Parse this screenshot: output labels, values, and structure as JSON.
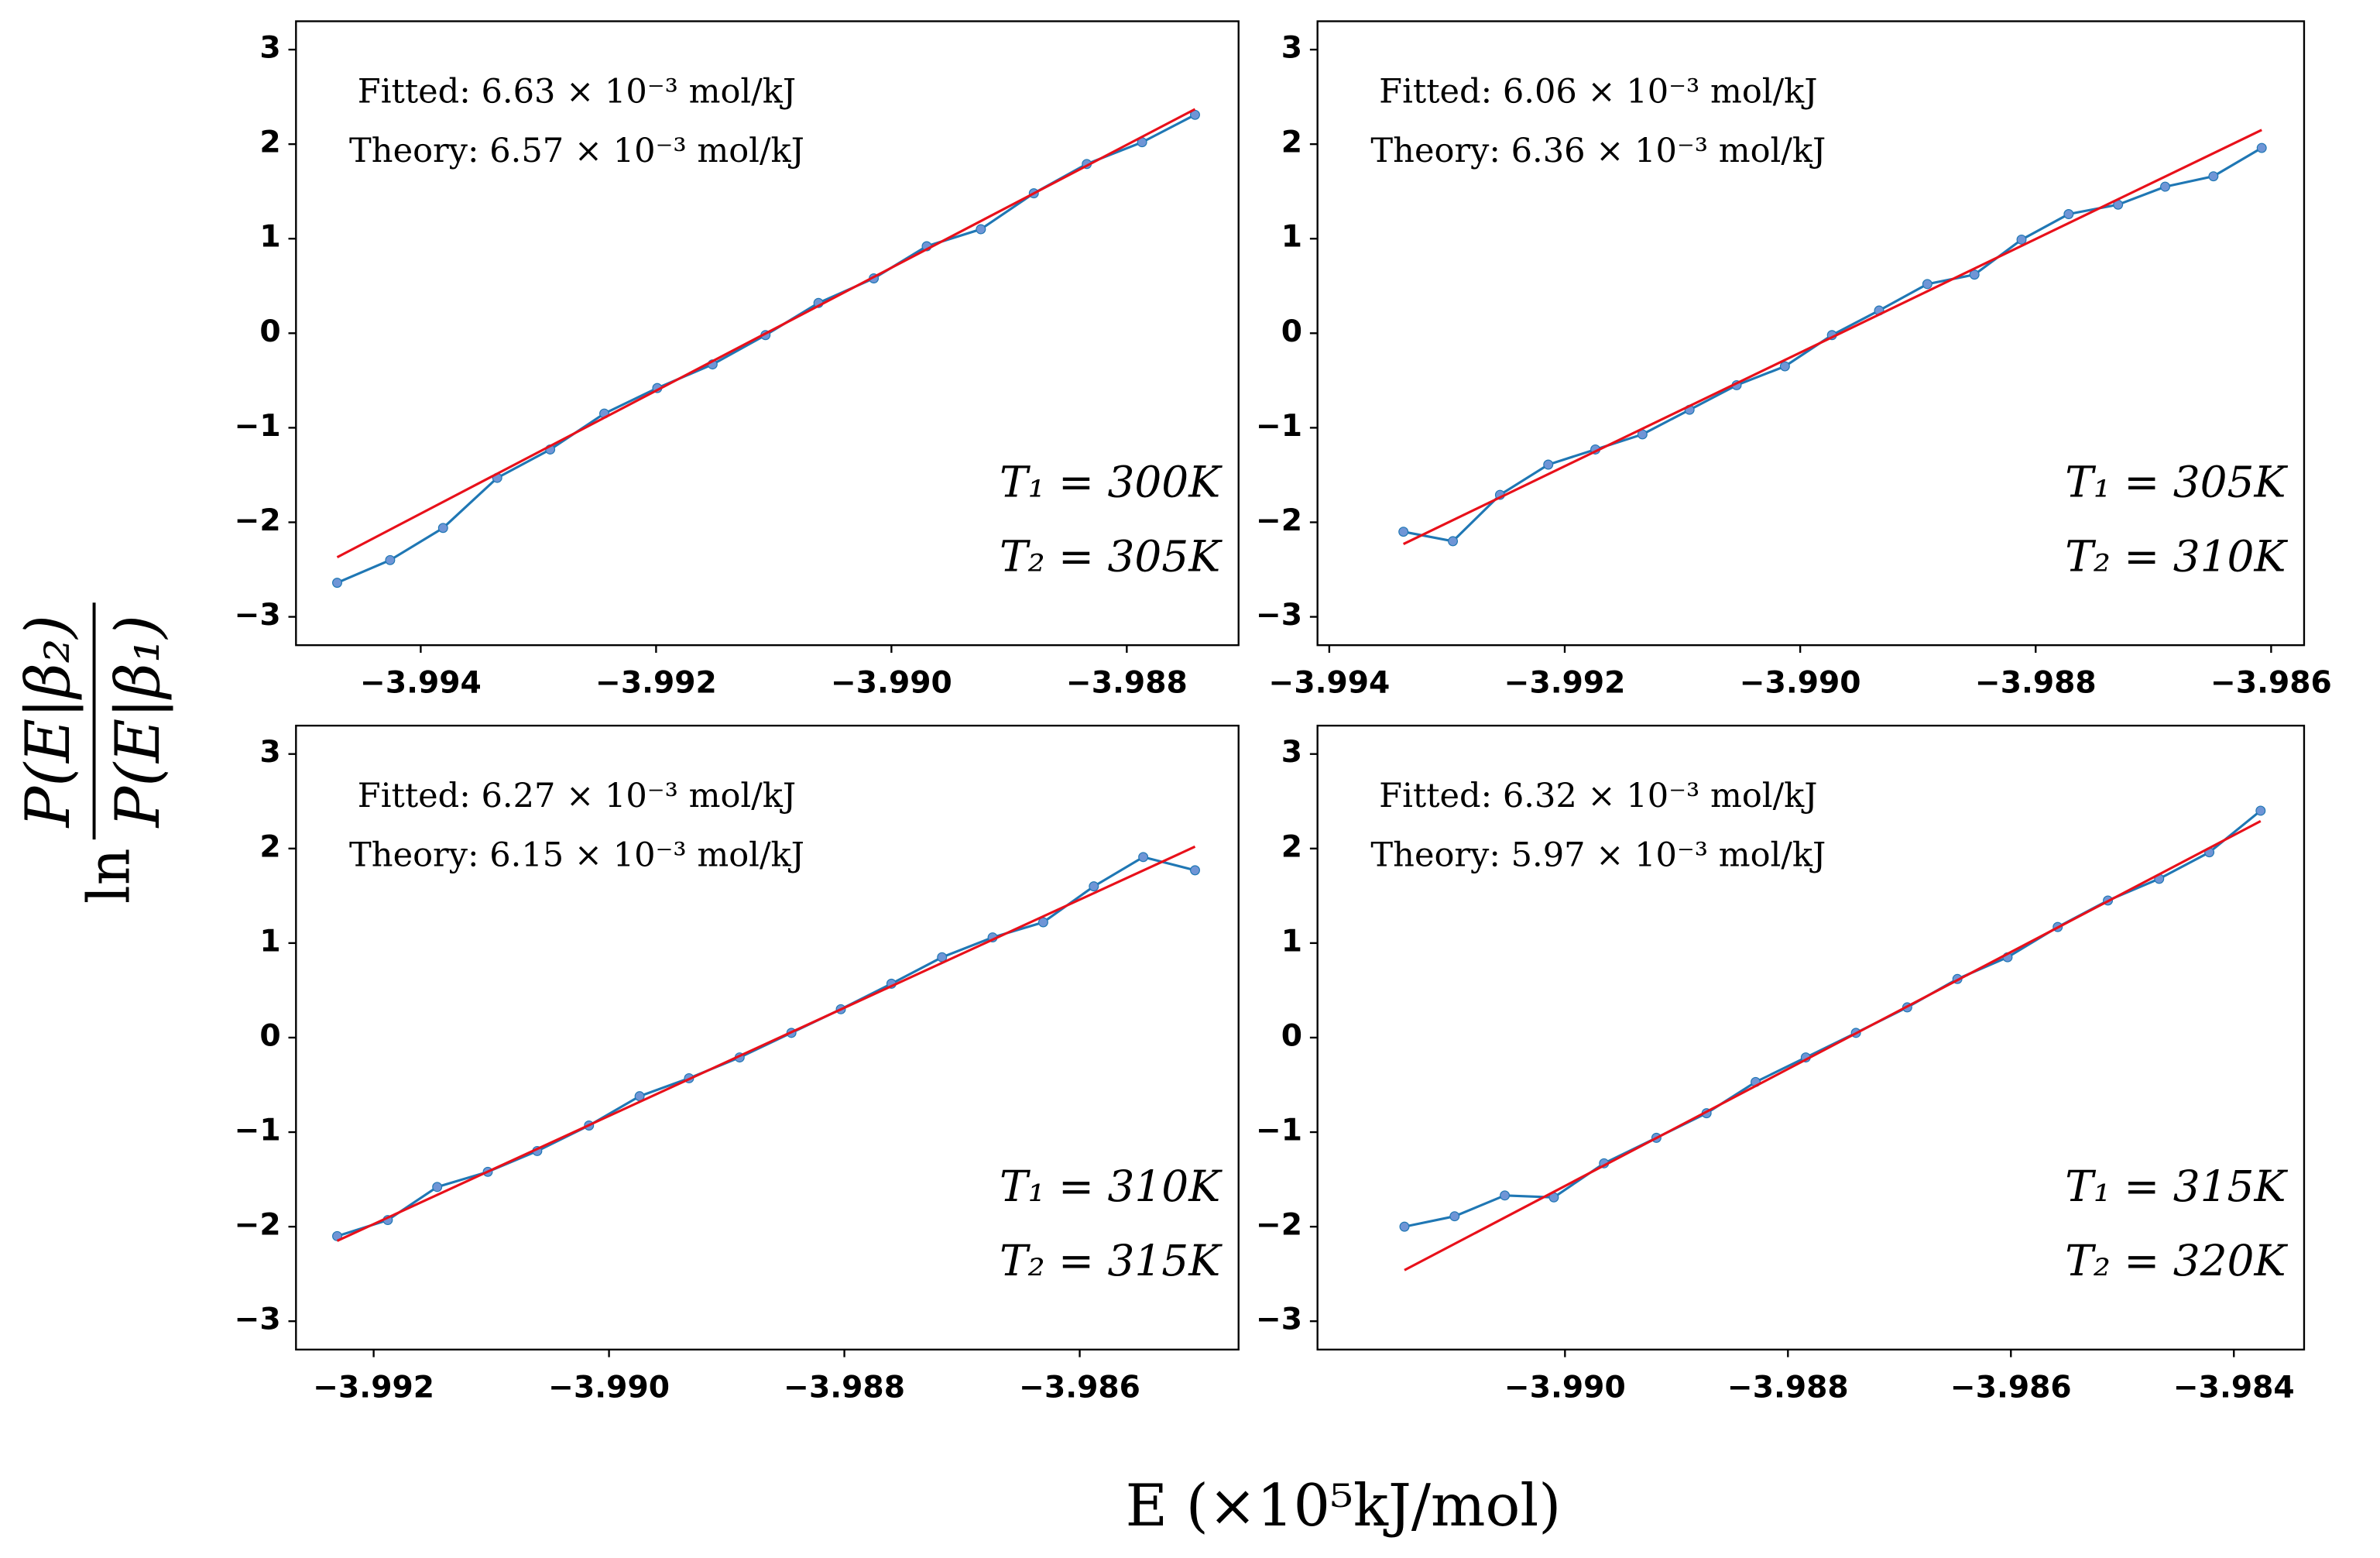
{
  "figure": {
    "xlabel": "E (×10⁵kJ/mol)",
    "ylabel": {
      "prefix": "ln",
      "numerator": "P(E|β₂)",
      "denominator": "P(E|β₁)"
    }
  },
  "chart_data": [
    {
      "type": "line",
      "annotations": [
        "Fitted: 6.63 × 10⁻³ mol/kJ",
        "Theory: 6.57 × 10⁻³ mol/kJ",
        "T₁ = 300K",
        "T₂ = 305K"
      ],
      "xlim": [
        -3.99506,
        -3.98705
      ],
      "xticks": [
        {
          "value": -3.994,
          "label": "−3.994"
        },
        {
          "value": -3.992,
          "label": "−3.992"
        },
        {
          "value": -3.99,
          "label": "−3.990"
        },
        {
          "value": -3.988,
          "label": "−3.988"
        }
      ],
      "ylim": [
        -3.3,
        3.3
      ],
      "yticks": [
        {
          "value": -3,
          "label": "−3"
        },
        {
          "value": -2,
          "label": "−2"
        },
        {
          "value": -1,
          "label": "−1"
        },
        0,
        1,
        2,
        3
      ],
      "series": [
        {
          "color": "#1f77b4",
          "marker_color": "#6f95d6",
          "x": [
            -3.99471,
            -3.99426,
            -3.99381,
            -3.99335,
            -3.9929,
            -3.99244,
            -3.99199,
            -3.99152,
            -3.99107,
            -3.99062,
            -3.99015,
            -3.9897,
            -3.98924,
            -3.98879,
            -3.98834,
            -3.98787,
            -3.98742
          ],
          "values": [
            -2.64,
            -2.4,
            -2.06,
            -1.53,
            -1.23,
            -0.85,
            -0.58,
            -0.33,
            -0.02,
            0.32,
            0.58,
            0.92,
            1.1,
            1.48,
            1.79,
            2.02,
            2.31
          ]
        },
        {
          "color": "#e8101a",
          "x": [
            -3.99471,
            -3.98742
          ],
          "values": [
            -2.37,
            2.37
          ]
        }
      ]
    },
    {
      "type": "line",
      "annotations": [
        "Fitted: 6.06 × 10⁻³ mol/kJ",
        "Theory: 6.36 × 10⁻³ mol/kJ",
        "T₁ = 305K",
        "T₂ = 310K"
      ],
      "xlim": [
        -3.9941,
        -3.98572
      ],
      "xticks": [
        {
          "value": -3.994,
          "label": "−3.994"
        },
        {
          "value": -3.992,
          "label": "−3.992"
        },
        {
          "value": -3.99,
          "label": "−3.990"
        },
        {
          "value": -3.988,
          "label": "−3.988"
        },
        {
          "value": -3.986,
          "label": "−3.986"
        }
      ],
      "ylim": [
        -3.3,
        3.3
      ],
      "yticks": [
        {
          "value": -3,
          "label": "−3"
        },
        {
          "value": -2,
          "label": "−2"
        },
        {
          "value": -1,
          "label": "−1"
        },
        0,
        1,
        2,
        3
      ],
      "series": [
        {
          "color": "#1f77b4",
          "marker_color": "#6f95d6",
          "x": [
            -3.99337,
            -3.99295,
            -3.99255,
            -3.99214,
            -3.99174,
            -3.99134,
            -3.99094,
            -3.99054,
            -3.99013,
            -3.98973,
            -3.98933,
            -3.98892,
            -3.98852,
            -3.98812,
            -3.98772,
            -3.9873,
            -3.9869,
            -3.98649,
            -3.98608
          ],
          "values": [
            -2.1,
            -2.2,
            -1.71,
            -1.39,
            -1.23,
            -1.07,
            -0.81,
            -0.55,
            -0.35,
            -0.02,
            0.24,
            0.52,
            0.62,
            0.99,
            1.26,
            1.36,
            1.55,
            1.66,
            1.96
          ]
        },
        {
          "color": "#e8101a",
          "x": [
            -3.99337,
            -3.98608
          ],
          "values": [
            -2.23,
            2.15
          ]
        }
      ]
    },
    {
      "type": "line",
      "annotations": [
        "Fitted: 6.27 × 10⁻³ mol/kJ",
        "Theory: 6.15 × 10⁻³ mol/kJ",
        "T₁ = 310K",
        "T₂ = 315K"
      ],
      "xlim": [
        -3.99266,
        -3.98465
      ],
      "xticks": [
        {
          "value": -3.992,
          "label": "−3.992"
        },
        {
          "value": -3.99,
          "label": "−3.990"
        },
        {
          "value": -3.988,
          "label": "−3.988"
        },
        {
          "value": -3.986,
          "label": "−3.986"
        }
      ],
      "ylim": [
        -3.3,
        3.3
      ],
      "yticks": [
        {
          "value": -3,
          "label": "−3"
        },
        {
          "value": -2,
          "label": "−2"
        },
        {
          "value": -1,
          "label": "−1"
        },
        0,
        1,
        2,
        3
      ],
      "series": [
        {
          "color": "#1f77b4",
          "marker_color": "#6f95d6",
          "x": [
            -3.99231,
            -3.99188,
            -3.99146,
            -3.99103,
            -3.99061,
            -3.99017,
            -3.98974,
            -3.98932,
            -3.98889,
            -3.98845,
            -3.98803,
            -3.9876,
            -3.98717,
            -3.98674,
            -3.98631,
            -3.98588,
            -3.98546,
            -3.98502
          ],
          "values": [
            -2.1,
            -1.93,
            -1.58,
            -1.42,
            -1.2,
            -0.93,
            -0.62,
            -0.43,
            -0.21,
            0.05,
            0.3,
            0.57,
            0.85,
            1.06,
            1.22,
            1.6,
            1.91,
            1.77
          ]
        },
        {
          "color": "#e8101a",
          "x": [
            -3.99231,
            -3.98502
          ],
          "values": [
            -2.15,
            2.02
          ]
        }
      ]
    },
    {
      "type": "line",
      "annotations": [
        "Fitted: 6.32 × 10⁻³ mol/kJ",
        "Theory: 5.97 × 10⁻³ mol/kJ",
        "T₁ = 315K",
        "T₂ = 320K"
      ],
      "xlim": [
        -3.99222,
        -3.98337
      ],
      "xticks": [
        {
          "value": -3.99,
          "label": "−3.990"
        },
        {
          "value": -3.988,
          "label": "−3.988"
        },
        {
          "value": -3.986,
          "label": "−3.986"
        },
        {
          "value": -3.984,
          "label": "−3.984"
        }
      ],
      "ylim": [
        -3.3,
        3.3
      ],
      "yticks": [
        {
          "value": -3,
          "label": "−3"
        },
        {
          "value": -2,
          "label": "−2"
        },
        {
          "value": -1,
          "label": "−1"
        },
        0,
        1,
        2,
        3
      ],
      "series": [
        {
          "color": "#1f77b4",
          "marker_color": "#6f95d6",
          "x": [
            -3.99144,
            -3.99099,
            -3.99054,
            -3.9901,
            -3.98965,
            -3.98918,
            -3.98873,
            -3.98829,
            -3.98784,
            -3.98739,
            -3.98693,
            -3.98648,
            -3.98603,
            -3.98558,
            -3.98513,
            -3.98467,
            -3.98422,
            -3.98376
          ],
          "values": [
            -2.0,
            -1.89,
            -1.67,
            -1.69,
            -1.33,
            -1.06,
            -0.8,
            -0.47,
            -0.21,
            0.05,
            0.32,
            0.62,
            0.85,
            1.17,
            1.45,
            1.68,
            1.96,
            2.4
          ]
        },
        {
          "color": "#e8101a",
          "x": [
            -3.99144,
            -3.98376
          ],
          "values": [
            -2.46,
            2.29
          ]
        }
      ]
    }
  ]
}
